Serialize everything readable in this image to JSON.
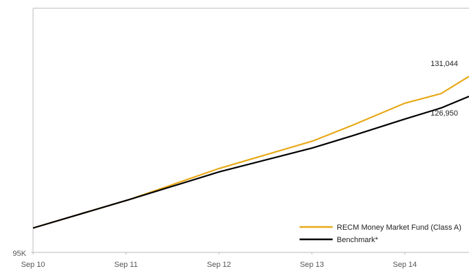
{
  "chart_data": {
    "type": "line",
    "xlim": [
      0,
      4.69
    ],
    "xticks": [
      {
        "value": 0,
        "label": "Sep 10"
      },
      {
        "value": 1,
        "label": "Sep 11"
      },
      {
        "value": 2,
        "label": "Sep 12"
      },
      {
        "value": 3,
        "label": "Sep 13"
      },
      {
        "value": 4,
        "label": "Sep 14"
      }
    ],
    "ylim": [
      95000,
      145000
    ],
    "yticks": [
      {
        "value": 95000,
        "label": "95K"
      }
    ],
    "x": [
      0,
      1.04,
      2.0,
      3.01,
      3.42,
      4.0,
      4.39,
      4.69
    ],
    "series": [
      {
        "name": "RECM Money Market Fund (Class A)",
        "color": "#e8a817",
        "values": [
          100000,
          105850,
          112180,
          117820,
          120920,
          125560,
          127530,
          131044
        ],
        "value_labels": [
          null,
          null,
          null,
          null,
          null,
          null,
          null,
          "131,044"
        ]
      },
      {
        "name": "Benchmark*",
        "color": "#000000",
        "values": [
          100000,
          105850,
          111480,
          116410,
          118800,
          122320,
          124580,
          126950
        ],
        "value_labels": [
          null,
          null,
          null,
          null,
          null,
          null,
          null,
          "126,950"
        ]
      }
    ],
    "legend": "lower right"
  }
}
